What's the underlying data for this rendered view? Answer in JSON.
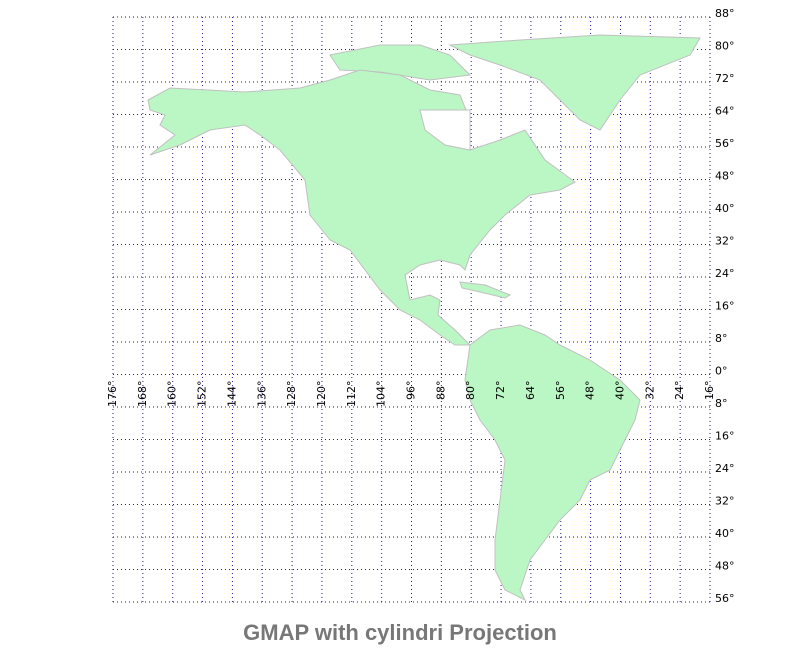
{
  "title": "GMAP with cylindri Projection",
  "longitude_labels": [
    "176°",
    "168°",
    "160°",
    "152°",
    "144°",
    "136°",
    "128°",
    "120°",
    "112°",
    "104°",
    "96°",
    "88°",
    "80°",
    "72°",
    "64°",
    "56°",
    "48°",
    "40°",
    "32°",
    "24°",
    "16°"
  ],
  "latitude_labels": [
    "88°",
    "80°",
    "72°",
    "64°",
    "56°",
    "48°",
    "40°",
    "32°",
    "24°",
    "16°",
    "8°",
    "0°",
    "8°",
    "16°",
    "24°",
    "32°",
    "40°",
    "48°",
    "56°"
  ]
}
